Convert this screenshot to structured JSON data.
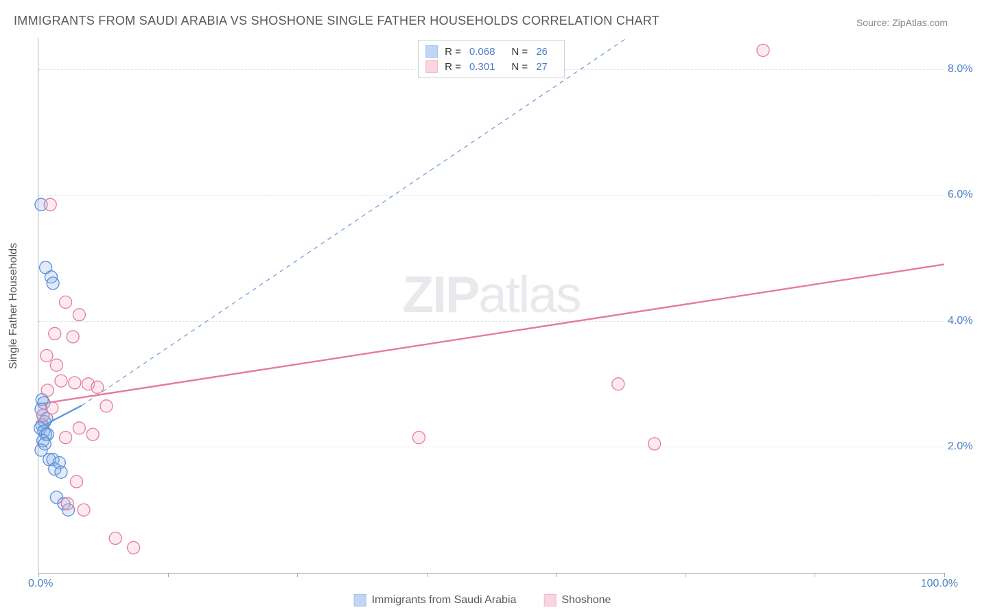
{
  "title": "IMMIGRANTS FROM SAUDI ARABIA VS SHOSHONE SINGLE FATHER HOUSEHOLDS CORRELATION CHART",
  "source_label": "Source: ZipAtlas.com",
  "ylabel": "Single Father Households",
  "watermark_bold": "ZIP",
  "watermark_light": "atlas",
  "chart": {
    "type": "scatter",
    "xlim": [
      0,
      100
    ],
    "ylim": [
      0,
      8.5
    ],
    "x_tick_positions": [
      0,
      14.29,
      28.57,
      42.86,
      57.14,
      71.43,
      85.71,
      100
    ],
    "x_tick_labels": {
      "first": "0.0%",
      "last": "100.0%"
    },
    "y_grid": [
      {
        "value": 2.0,
        "label": "2.0%"
      },
      {
        "value": 4.0,
        "label": "4.0%"
      },
      {
        "value": 6.0,
        "label": "6.0%"
      },
      {
        "value": 8.0,
        "label": "8.0%"
      }
    ],
    "background_color": "#ffffff",
    "grid_color": "#d8dbdf",
    "axis_color": "#a8acb2",
    "tick_label_color": "#4a7fc7",
    "label_color": "#555a60",
    "marker_radius": 9,
    "marker_fill_opacity": 0.28,
    "marker_stroke_width": 1.3,
    "series": [
      {
        "name": "Immigrants from Saudi Arabia",
        "color_stroke": "#5b8fd6",
        "color_fill": "#8fb5e8",
        "R": "0.068",
        "N": "26",
        "trend": {
          "x1": 0.0,
          "y1": 2.3,
          "x2": 4.8,
          "y2": 2.66,
          "style": "solid",
          "width": 2.2
        },
        "trend_ext": {
          "x1": 4.8,
          "y1": 2.66,
          "x2": 65,
          "y2": 8.5,
          "style": "dashed",
          "width": 1.1
        },
        "points": [
          [
            0.3,
            5.85
          ],
          [
            0.8,
            4.85
          ],
          [
            1.4,
            4.7
          ],
          [
            1.6,
            4.6
          ],
          [
            0.4,
            2.75
          ],
          [
            0.6,
            2.7
          ],
          [
            0.3,
            2.6
          ],
          [
            0.5,
            2.5
          ],
          [
            0.9,
            2.45
          ],
          [
            0.7,
            2.4
          ],
          [
            0.4,
            2.35
          ],
          [
            0.2,
            2.3
          ],
          [
            0.6,
            2.25
          ],
          [
            0.8,
            2.2
          ],
          [
            1.0,
            2.2
          ],
          [
            0.5,
            2.1
          ],
          [
            0.7,
            2.05
          ],
          [
            0.3,
            1.95
          ],
          [
            1.2,
            1.8
          ],
          [
            1.6,
            1.8
          ],
          [
            2.3,
            1.75
          ],
          [
            1.8,
            1.65
          ],
          [
            2.5,
            1.6
          ],
          [
            2.0,
            1.2
          ],
          [
            2.8,
            1.1
          ],
          [
            3.3,
            1.0
          ]
        ]
      },
      {
        "name": "Shoshone",
        "color_stroke": "#e67a9d",
        "color_fill": "#f4b3c6",
        "R": "0.301",
        "N": "27",
        "trend": {
          "x1": 0.0,
          "y1": 2.68,
          "x2": 100,
          "y2": 4.9,
          "style": "solid",
          "width": 2.4
        },
        "points": [
          [
            1.3,
            5.85
          ],
          [
            3.0,
            4.3
          ],
          [
            4.5,
            4.1
          ],
          [
            1.8,
            3.8
          ],
          [
            3.8,
            3.75
          ],
          [
            0.9,
            3.45
          ],
          [
            2.5,
            3.05
          ],
          [
            5.5,
            3.0
          ],
          [
            4.0,
            3.02
          ],
          [
            6.5,
            2.95
          ],
          [
            1.5,
            2.62
          ],
          [
            7.5,
            2.65
          ],
          [
            4.5,
            2.3
          ],
          [
            3.0,
            2.15
          ],
          [
            6.0,
            2.2
          ],
          [
            4.2,
            1.45
          ],
          [
            5.0,
            1.0
          ],
          [
            3.2,
            1.1
          ],
          [
            8.5,
            0.55
          ],
          [
            10.5,
            0.4
          ],
          [
            42.0,
            2.15
          ],
          [
            64.0,
            3.0
          ],
          [
            68.0,
            2.05
          ],
          [
            80.0,
            8.3
          ],
          [
            2.0,
            3.3
          ],
          [
            1.0,
            2.9
          ],
          [
            0.5,
            2.5
          ]
        ]
      }
    ]
  },
  "top_legend": {
    "r_label": "R =",
    "n_label": "N ="
  }
}
